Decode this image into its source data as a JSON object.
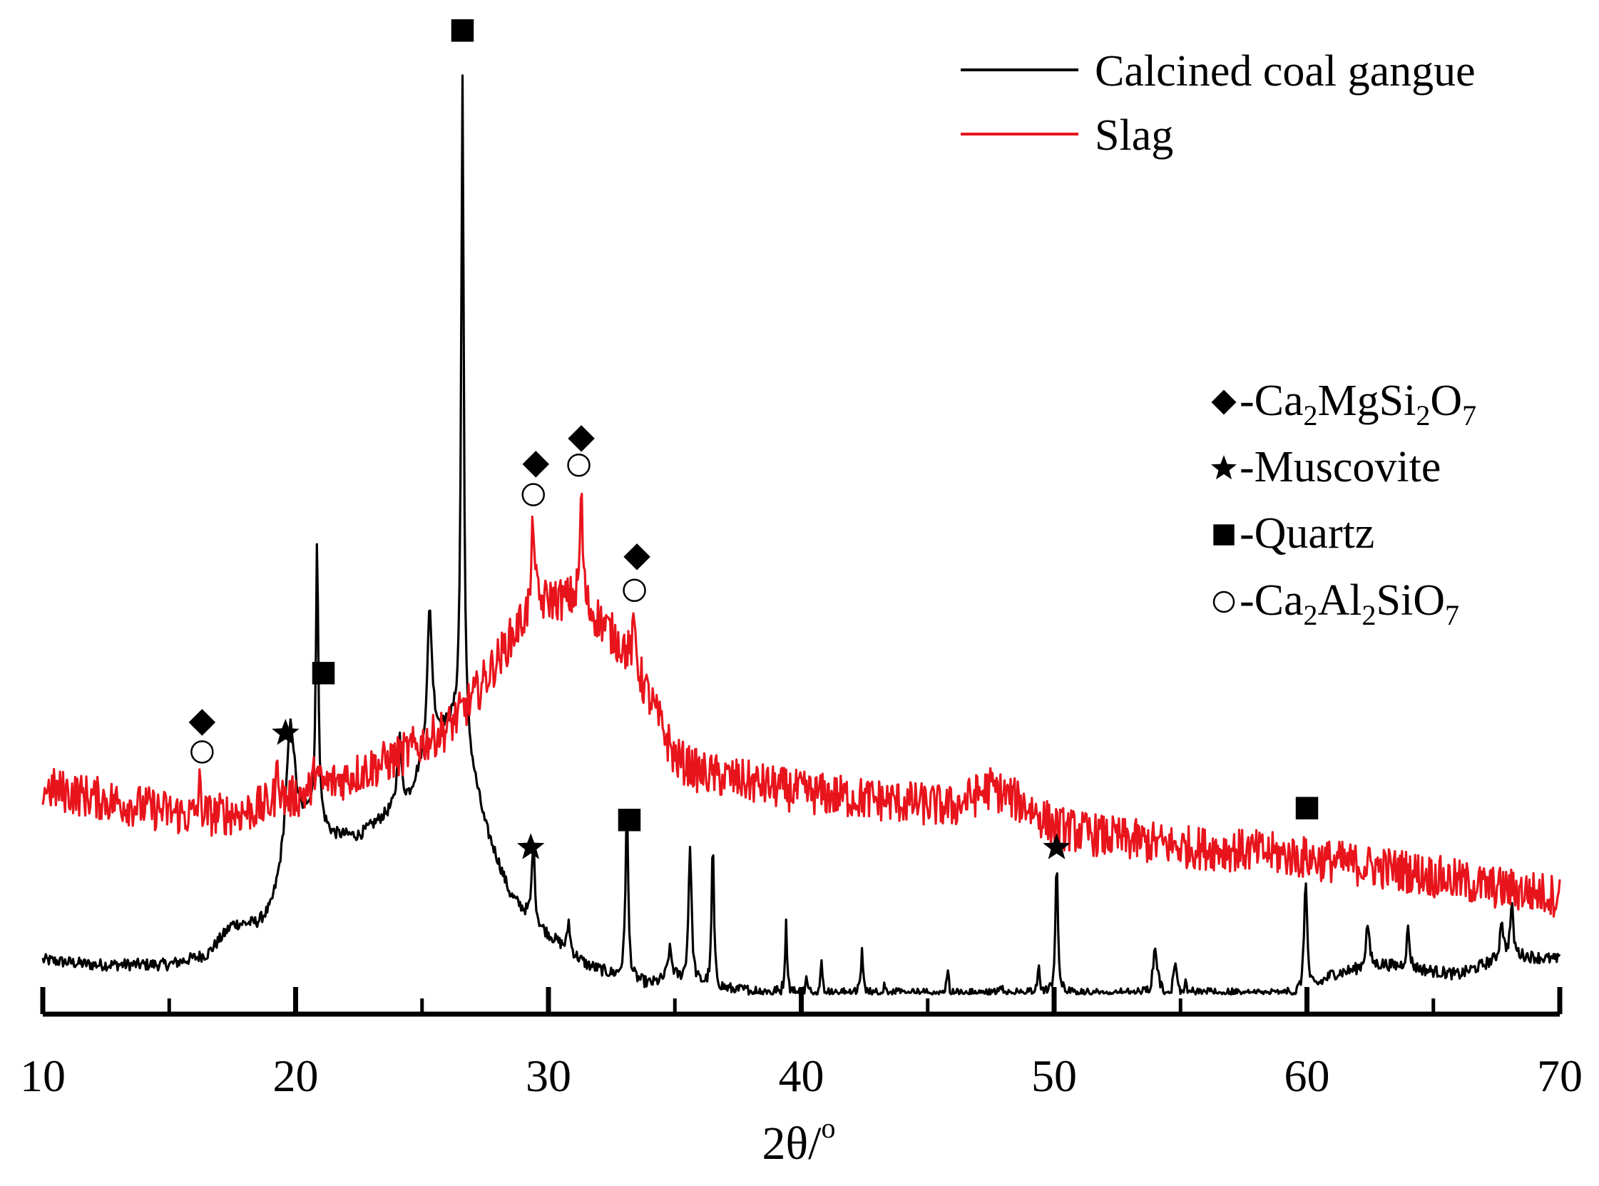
{
  "chart_data": {
    "type": "line",
    "title": "",
    "xlabel": "2θ/o",
    "xlabel_parts": {
      "main": "2θ/",
      "sup": "o"
    },
    "ylabel": "",
    "xlim": [
      10,
      70
    ],
    "y_units": "normalized intensity (0-1, arbitrary units)",
    "ylim": [
      0,
      1
    ],
    "x_ticks": [
      10,
      20,
      30,
      40,
      50,
      60,
      70
    ],
    "x_minor_ticks": [
      15,
      25,
      35,
      45,
      55,
      65
    ],
    "legend": {
      "position": "top-right",
      "entries": [
        {
          "label": "Calcined coal gangue",
          "color": "#000000"
        },
        {
          "label": "Slag",
          "color": "#e8141c"
        }
      ]
    },
    "phase_legend": {
      "position": "right",
      "entries": [
        {
          "symbol": "diamond",
          "label": "-Ca2MgSi2O7",
          "parts": [
            "-Ca",
            "2",
            "MgSi",
            "2",
            "O",
            "7"
          ]
        },
        {
          "symbol": "star",
          "label": "-Muscovite",
          "parts": [
            "-Muscovite"
          ]
        },
        {
          "symbol": "square",
          "label": "-Quartz",
          "parts": [
            "-Quartz"
          ]
        },
        {
          "symbol": "circle",
          "label": "-Ca2Al2SiO7",
          "parts": [
            "-Ca",
            "2",
            "Al",
            "2",
            "SiO",
            "7"
          ]
        }
      ]
    },
    "series": [
      {
        "name": "Calcined coal gangue",
        "color": "#000000",
        "baseline": [
          [
            10,
            0.055
          ],
          [
            12,
            0.05
          ],
          [
            15,
            0.05
          ],
          [
            16.5,
            0.06
          ],
          [
            17.5,
            0.09
          ],
          [
            18.5,
            0.09
          ],
          [
            19,
            0.1
          ],
          [
            20.5,
            0.2
          ],
          [
            21.5,
            0.18
          ],
          [
            22.5,
            0.18
          ],
          [
            23.5,
            0.2
          ],
          [
            24.5,
            0.22
          ],
          [
            25.5,
            0.28
          ],
          [
            26.5,
            0.3
          ],
          [
            27.5,
            0.19
          ],
          [
            28.5,
            0.12
          ],
          [
            29.5,
            0.09
          ],
          [
            30.5,
            0.07
          ],
          [
            31.5,
            0.05
          ],
          [
            32.5,
            0.04
          ],
          [
            34,
            0.03
          ],
          [
            35,
            0.035
          ],
          [
            37,
            0.025
          ],
          [
            40,
            0.02
          ],
          [
            50,
            0.02
          ],
          [
            55,
            0.02
          ],
          [
            60,
            0.02
          ],
          [
            61,
            0.04
          ],
          [
            63,
            0.05
          ],
          [
            66,
            0.04
          ],
          [
            68,
            0.06
          ],
          [
            70,
            0.055
          ]
        ],
        "peaks": [
          {
            "x": 19.8,
            "h": 0.14,
            "w": 0.22
          },
          {
            "x": 20.85,
            "h": 0.28,
            "w": 0.06
          },
          {
            "x": 24.1,
            "h": 0.07,
            "w": 0.09
          },
          {
            "x": 25.3,
            "h": 0.14,
            "w": 0.12
          },
          {
            "x": 26.6,
            "h": 0.66,
            "w": 0.06
          },
          {
            "x": 29.4,
            "h": 0.08,
            "w": 0.07
          },
          {
            "x": 30.8,
            "h": 0.03,
            "w": 0.06
          },
          {
            "x": 33.1,
            "h": 0.18,
            "w": 0.06
          },
          {
            "x": 34.8,
            "h": 0.03,
            "w": 0.1
          },
          {
            "x": 35.6,
            "h": 0.14,
            "w": 0.07
          },
          {
            "x": 36.5,
            "h": 0.15,
            "w": 0.05
          },
          {
            "x": 39.4,
            "h": 0.07,
            "w": 0.05
          },
          {
            "x": 40.2,
            "h": 0.015,
            "w": 0.05
          },
          {
            "x": 40.8,
            "h": 0.03,
            "w": 0.05
          },
          {
            "x": 42.4,
            "h": 0.045,
            "w": 0.05
          },
          {
            "x": 43.3,
            "h": 0.01,
            "w": 0.05
          },
          {
            "x": 45.8,
            "h": 0.025,
            "w": 0.05
          },
          {
            "x": 47.9,
            "h": 0.01,
            "w": 0.05
          },
          {
            "x": 49.4,
            "h": 0.03,
            "w": 0.05
          },
          {
            "x": 50.1,
            "h": 0.13,
            "w": 0.06
          },
          {
            "x": 54.0,
            "h": 0.05,
            "w": 0.1
          },
          {
            "x": 54.8,
            "h": 0.03,
            "w": 0.08
          },
          {
            "x": 55.2,
            "h": 0.015,
            "w": 0.05
          },
          {
            "x": 59.95,
            "h": 0.12,
            "w": 0.07
          },
          {
            "x": 62.4,
            "h": 0.045,
            "w": 0.08
          },
          {
            "x": 64.0,
            "h": 0.04,
            "w": 0.07
          },
          {
            "x": 67.7,
            "h": 0.04,
            "w": 0.07
          },
          {
            "x": 68.1,
            "h": 0.05,
            "w": 0.07
          }
        ],
        "noise": 0.006
      },
      {
        "name": "Slag",
        "color": "#e8141c",
        "baseline": [
          [
            10,
            0.23
          ],
          [
            12,
            0.22
          ],
          [
            14,
            0.21
          ],
          [
            16,
            0.2
          ],
          [
            18,
            0.205
          ],
          [
            20,
            0.22
          ],
          [
            22,
            0.24
          ],
          [
            24,
            0.26
          ],
          [
            26,
            0.29
          ],
          [
            27,
            0.32
          ],
          [
            28,
            0.36
          ],
          [
            29,
            0.4
          ],
          [
            30,
            0.42
          ],
          [
            31,
            0.42
          ],
          [
            32,
            0.4
          ],
          [
            33,
            0.37
          ],
          [
            34,
            0.32
          ],
          [
            35,
            0.26
          ],
          [
            36,
            0.245
          ],
          [
            38,
            0.235
          ],
          [
            40,
            0.225
          ],
          [
            42,
            0.22
          ],
          [
            44,
            0.215
          ],
          [
            46,
            0.21
          ],
          [
            47.5,
            0.23
          ],
          [
            49,
            0.21
          ],
          [
            50,
            0.19
          ],
          [
            52,
            0.18
          ],
          [
            55,
            0.17
          ],
          [
            58,
            0.165
          ],
          [
            61,
            0.155
          ],
          [
            64,
            0.145
          ],
          [
            67,
            0.13
          ],
          [
            70,
            0.12
          ]
        ],
        "peaks": [
          {
            "x": 16.2,
            "h": 0.03,
            "w": 0.07
          },
          {
            "x": 19.3,
            "h": 0.04,
            "w": 0.07
          },
          {
            "x": 20.8,
            "h": 0.03,
            "w": 0.07
          },
          {
            "x": 29.4,
            "h": 0.1,
            "w": 0.07
          },
          {
            "x": 31.3,
            "h": 0.11,
            "w": 0.07
          },
          {
            "x": 33.4,
            "h": 0.04,
            "w": 0.1
          }
        ],
        "noise": 0.022
      }
    ],
    "annotations": [
      {
        "symbol": "diamond",
        "x": 16.3,
        "y": 0.296
      },
      {
        "symbol": "circle",
        "x": 16.3,
        "y": 0.266
      },
      {
        "symbol": "star",
        "x": 19.6,
        "y": 0.285
      },
      {
        "symbol": "square",
        "x": 21.1,
        "y": 0.346
      },
      {
        "symbol": "square",
        "x": 26.6,
        "y": 0.998
      },
      {
        "symbol": "diamond",
        "x": 29.5,
        "y": 0.558
      },
      {
        "symbol": "circle",
        "x": 29.4,
        "y": 0.527
      },
      {
        "symbol": "diamond",
        "x": 31.3,
        "y": 0.584
      },
      {
        "symbol": "circle",
        "x": 31.2,
        "y": 0.557
      },
      {
        "symbol": "diamond",
        "x": 33.5,
        "y": 0.464
      },
      {
        "symbol": "circle",
        "x": 33.4,
        "y": 0.43
      },
      {
        "symbol": "star",
        "x": 19.6,
        "y": 0.285
      },
      {
        "symbol": "star",
        "x": 29.3,
        "y": 0.169
      },
      {
        "symbol": "square",
        "x": 33.2,
        "y": 0.197
      },
      {
        "symbol": "star",
        "x": 50.1,
        "y": 0.169
      },
      {
        "symbol": "square",
        "x": 60.0,
        "y": 0.209
      }
    ]
  }
}
